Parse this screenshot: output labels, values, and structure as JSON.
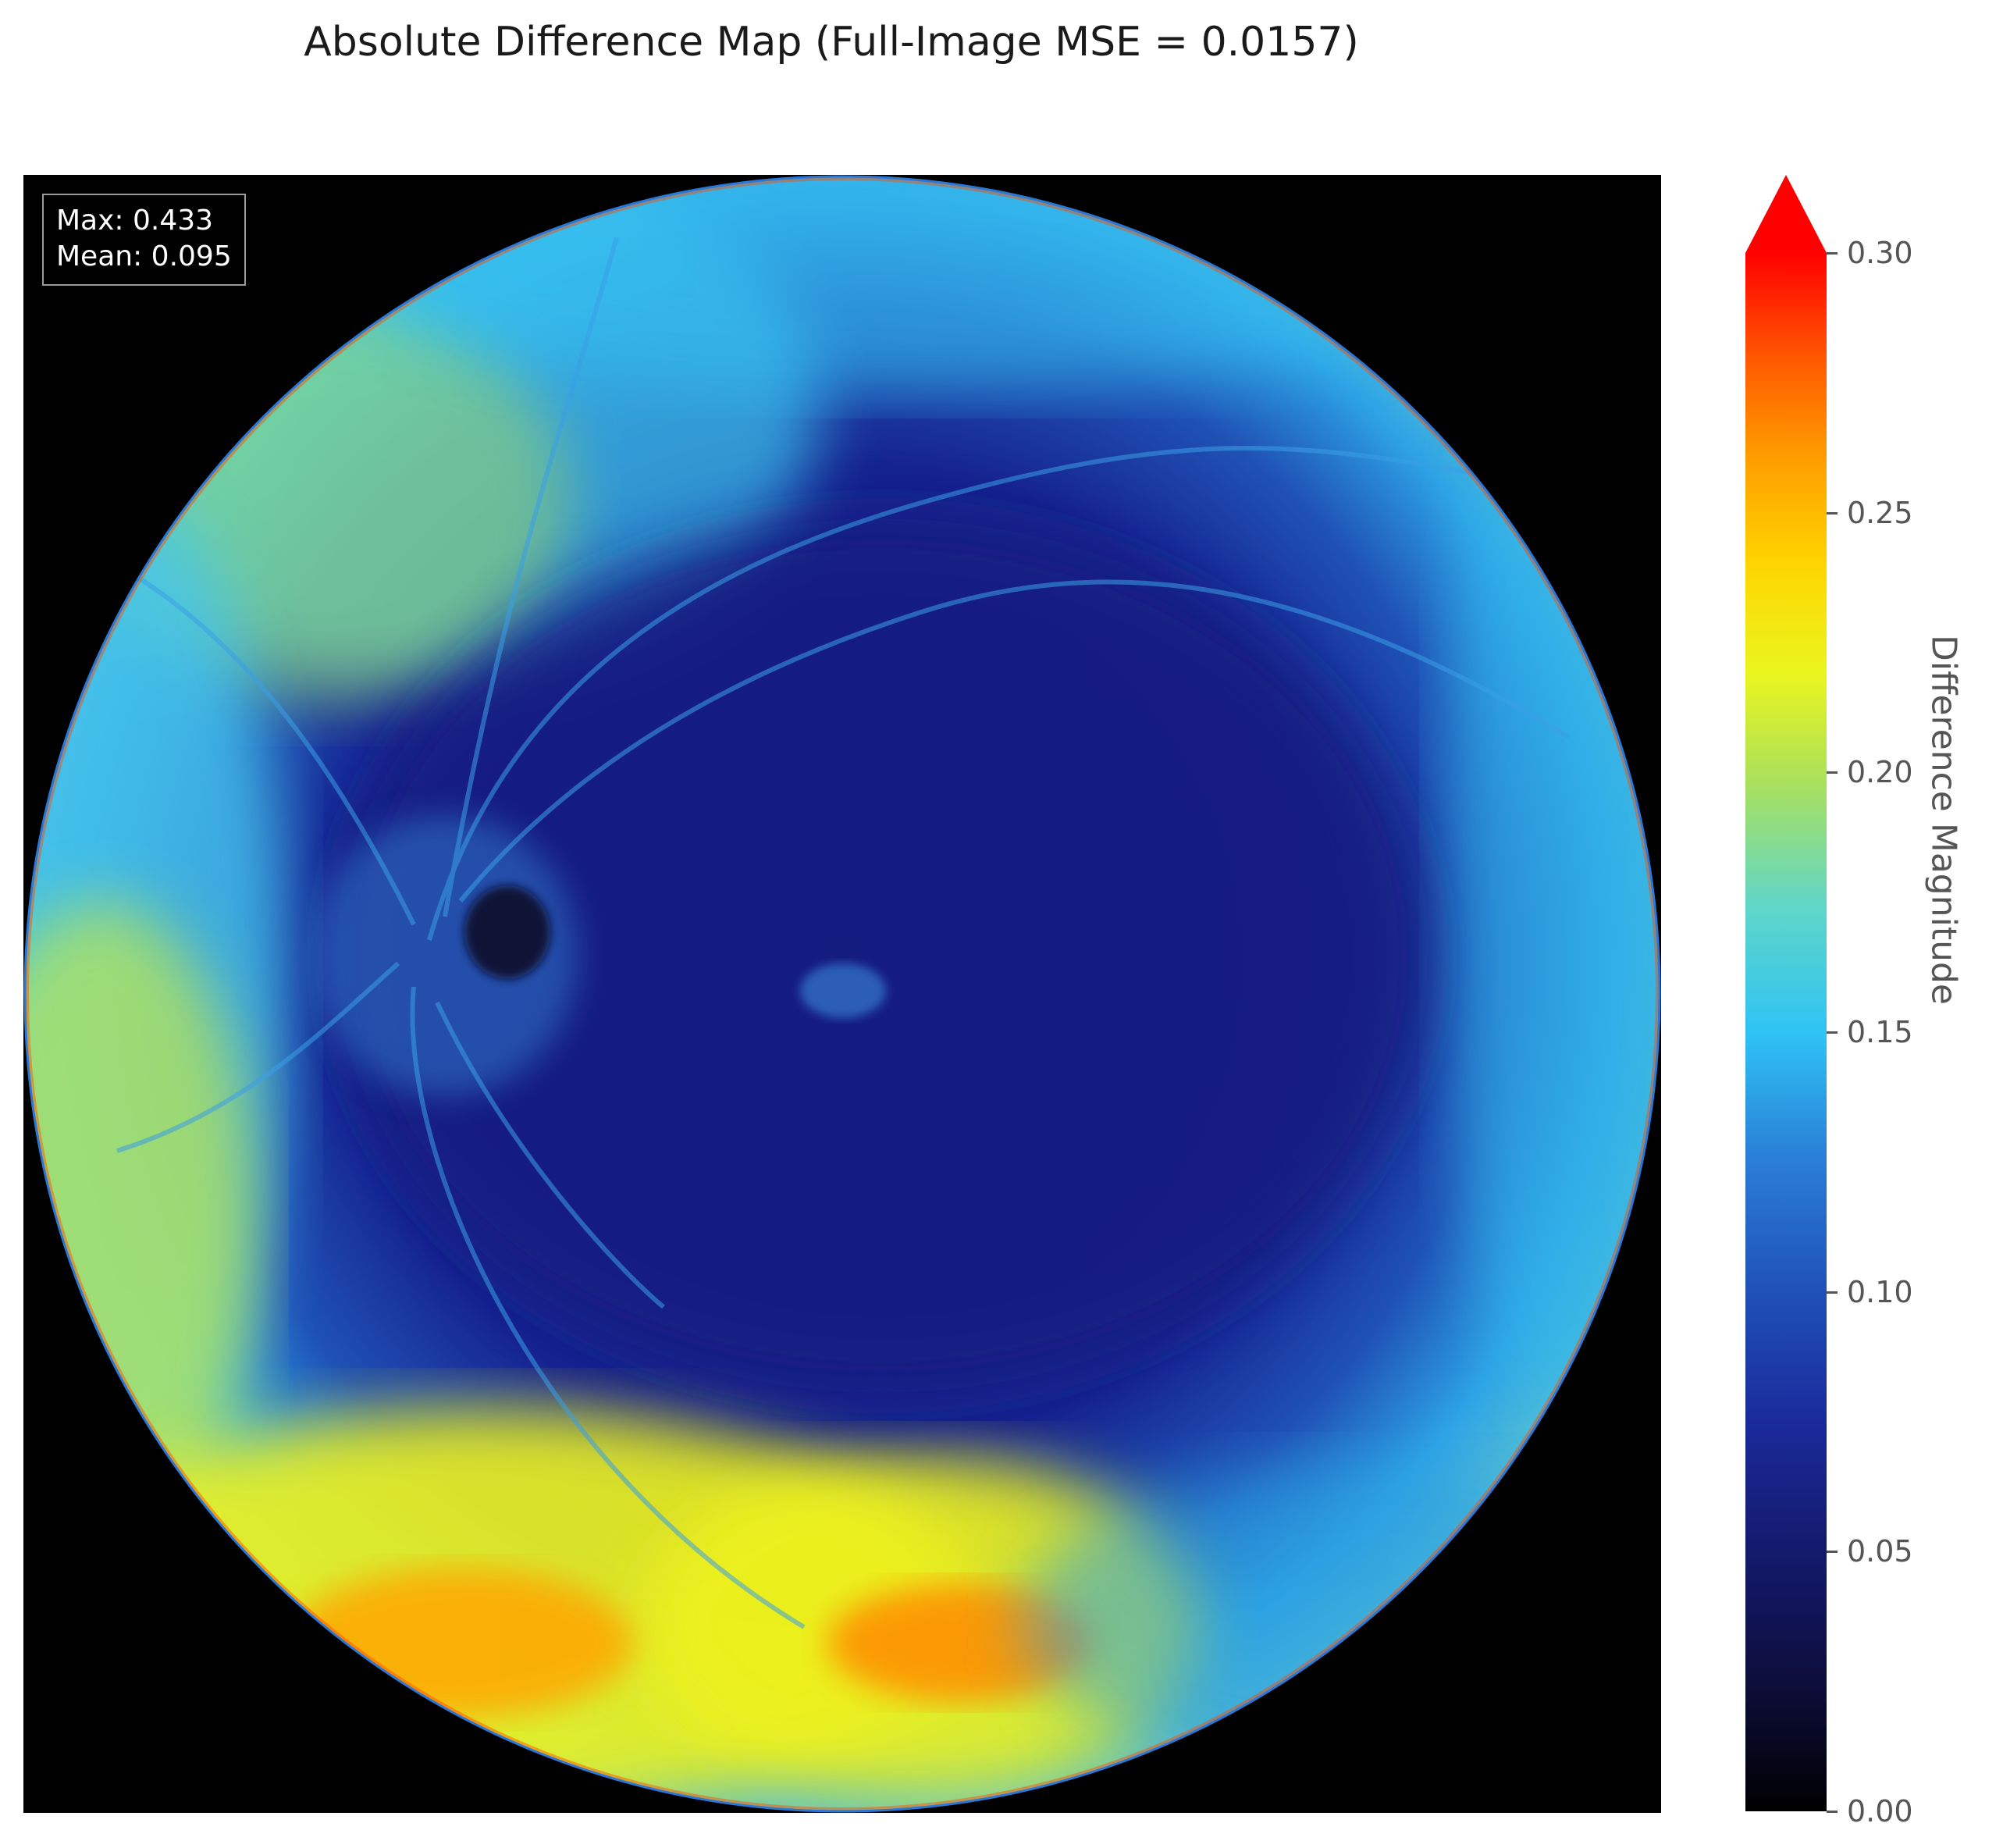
{
  "figure": {
    "title": "Absolute Difference Map (Full-Image MSE = 0.0157)"
  },
  "stats_box": {
    "max_label": "Max: 0.433",
    "mean_label": "Mean: 0.095"
  },
  "colorbar": {
    "label": "Difference Magnitude",
    "ticks": [
      "0.00",
      "0.05",
      "0.10",
      "0.15",
      "0.20",
      "0.25",
      "0.30"
    ],
    "range": [
      0.0,
      0.3
    ],
    "extend": "max",
    "colormap": "jet-like (black → blue → cyan → yellow → red)"
  },
  "colors": {
    "background": "#000000",
    "low": "#141a6e",
    "mid": "#2fc3f5",
    "high_yellow": "#eaf51e",
    "peak": "#ff6a00",
    "over": "#ff0000"
  }
}
